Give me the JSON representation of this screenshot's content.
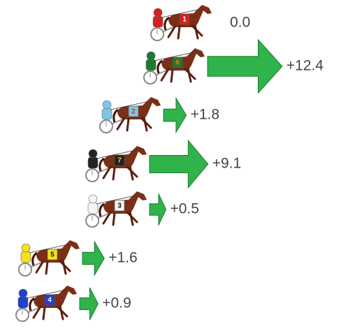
{
  "chart_data": {
    "type": "arrow",
    "categories": [
      "1",
      "6",
      "2",
      "7",
      "3",
      "5",
      "4"
    ],
    "values": [
      0.0,
      12.4,
      1.8,
      9.1,
      0.5,
      1.6,
      0.9
    ],
    "value_labels": [
      "0.0",
      "+12.4",
      "+1.8",
      "+9.1",
      "+0.5",
      "+1.6",
      "+0.9"
    ],
    "colors": [
      "#d42020",
      "#1e7a2e",
      "#7fc6e6",
      "#222222",
      "#f4f4f4",
      "#f2e21c",
      "#1f3fd0"
    ],
    "number_colors": [
      "#ffffff",
      "#e0752a",
      "#d83030",
      "#f2e21c",
      "#111111",
      "#111111",
      "#ffffff"
    ],
    "arrow_color": "#2fb34a"
  }
}
